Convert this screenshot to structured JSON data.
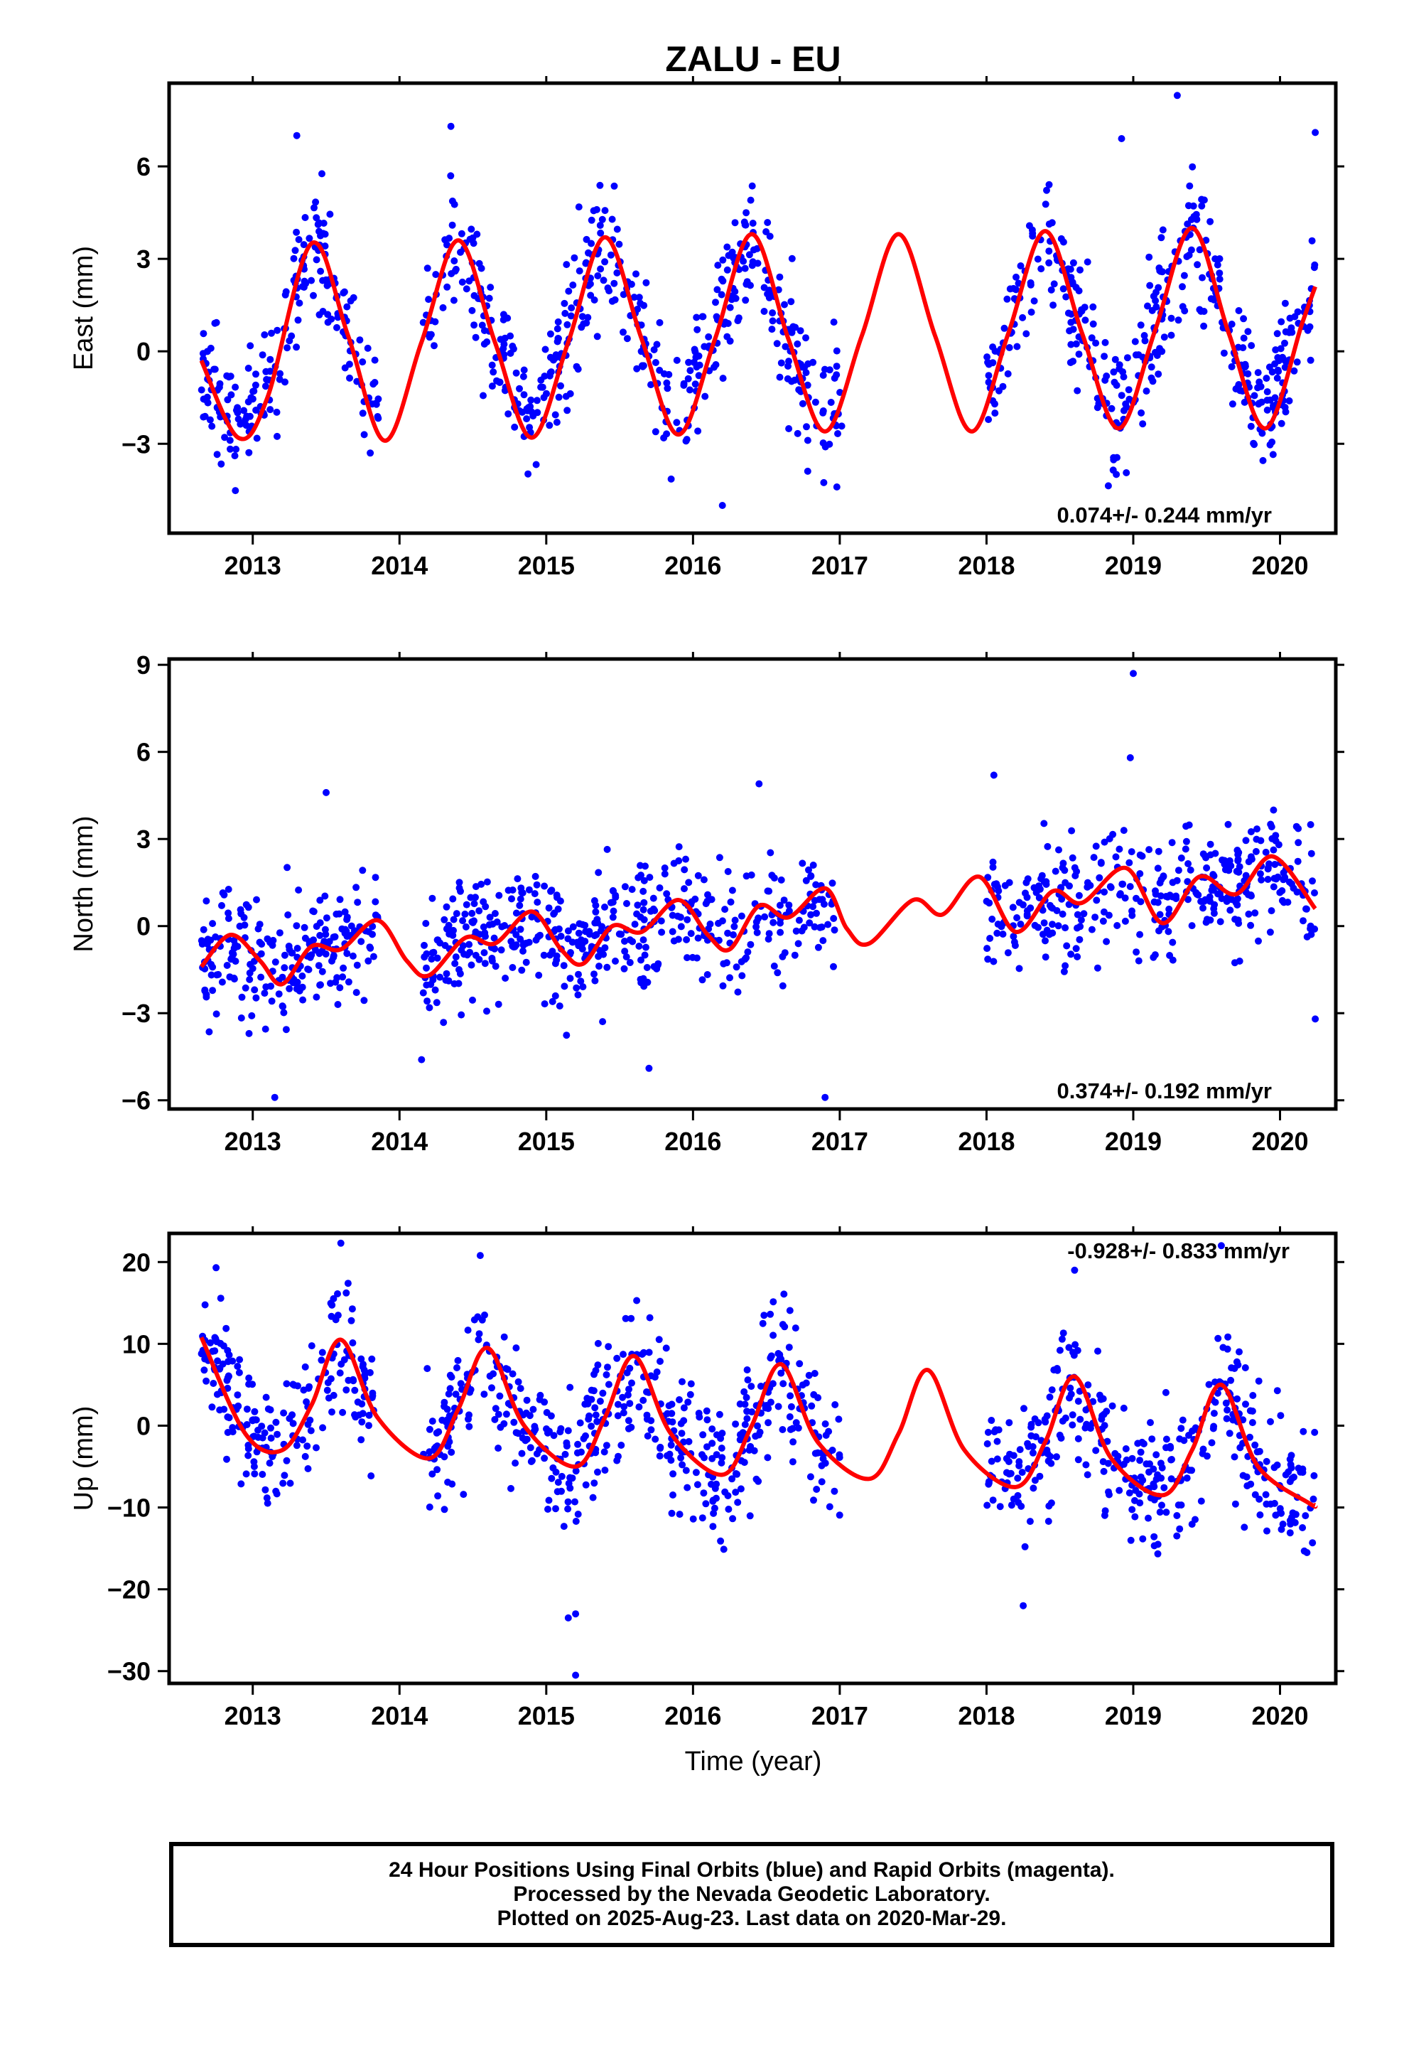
{
  "figure": {
    "title": "ZALU - EU",
    "xlabel": "Time (year)"
  },
  "caption": {
    "line1": "24 Hour Positions Using Final Orbits (blue) and Rapid Orbits (magenta).",
    "line2": "Processed by the Nevada Geodetic Laboratory.",
    "line3": "Plotted on 2025-Aug-23. Last data on 2020-Mar-29."
  },
  "colors": {
    "points": "#0000ff",
    "model": "#ff0000",
    "frame": "#000000"
  },
  "chart_data": [
    {
      "type": "scatter",
      "component": "East",
      "ylabel": "East (mm)",
      "rate_text": "0.074+/- 0.244 mm/yr",
      "xlim": [
        2012.43,
        2020.38
      ],
      "ylim": [
        -5.9,
        8.7
      ],
      "xticks": [
        2013,
        2014,
        2015,
        2016,
        2017,
        2018,
        2019,
        2020
      ],
      "yticks": [
        -3,
        0,
        3,
        6
      ],
      "data_start": 2012.65,
      "data_end": 2020.24,
      "gaps": [
        [
          2013.86,
          2014.16
        ],
        [
          2017.02,
          2018.0
        ]
      ],
      "model": {
        "x": [
          2012.65,
          2012.9,
          2013.1,
          2013.4,
          2013.65,
          2013.9,
          2014.15,
          2014.4,
          2014.65,
          2014.9,
          2015.15,
          2015.4,
          2015.65,
          2015.9,
          2016.15,
          2016.4,
          2016.65,
          2016.9,
          2017.15,
          2017.4,
          2017.65,
          2017.9,
          2018.15,
          2018.4,
          2018.65,
          2018.9,
          2019.15,
          2019.4,
          2019.65,
          2019.9,
          2020.15,
          2020.24
        ],
        "y": [
          -0.3,
          -2.8,
          -1.5,
          3.5,
          0.5,
          -2.9,
          0.3,
          3.6,
          0.3,
          -2.8,
          0.3,
          3.7,
          0.4,
          -2.7,
          0.4,
          3.8,
          0.4,
          -2.6,
          0.5,
          3.8,
          0.5,
          -2.6,
          0.6,
          3.9,
          0.6,
          -2.5,
          0.7,
          4.0,
          0.6,
          -2.5,
          0.9,
          2.1
        ]
      },
      "points": {
        "amplitude": 3.2,
        "phase_peak": 2013.4,
        "noise": 1.0,
        "offset": 0.4,
        "outliers": [
          [
            2019.3,
            8.3
          ],
          [
            2018.92,
            6.9
          ],
          [
            2020.24,
            7.1
          ],
          [
            2013.3,
            7.0
          ],
          [
            2014.35,
            7.3
          ],
          [
            2016.98,
            -4.4
          ],
          [
            2016.2,
            -5.0
          ]
        ]
      }
    },
    {
      "type": "scatter",
      "component": "North",
      "ylabel": "North (mm)",
      "rate_text": "0.374+/- 0.192 mm/yr",
      "xlim": [
        2012.43,
        2020.38
      ],
      "ylim": [
        -6.3,
        9.2
      ],
      "xticks": [
        2013,
        2014,
        2015,
        2016,
        2017,
        2018,
        2019,
        2020
      ],
      "yticks": [
        -6,
        -3,
        0,
        3,
        6,
        9
      ],
      "data_start": 2012.65,
      "data_end": 2020.24,
      "gaps": [
        [
          2013.86,
          2014.16
        ],
        [
          2016.98,
          2018.0
        ]
      ],
      "model": {
        "x": [
          2012.65,
          2012.85,
          2013.05,
          2013.2,
          2013.4,
          2013.6,
          2013.85,
          2014.05,
          2014.2,
          2014.45,
          2014.65,
          2014.9,
          2015.1,
          2015.25,
          2015.45,
          2015.65,
          2015.9,
          2016.1,
          2016.25,
          2016.45,
          2016.65,
          2016.9,
          2017.05,
          2017.2,
          2017.5,
          2017.7,
          2017.95,
          2018.2,
          2018.45,
          2018.65,
          2018.95,
          2019.2,
          2019.45,
          2019.7,
          2019.95,
          2020.24
        ],
        "y": [
          -1.4,
          -0.3,
          -1.2,
          -2.0,
          -0.7,
          -0.8,
          0.2,
          -1.2,
          -1.7,
          -0.4,
          -0.6,
          0.5,
          -0.8,
          -1.3,
          0.0,
          -0.2,
          0.9,
          -0.3,
          -0.8,
          0.7,
          0.3,
          1.3,
          -0.1,
          -0.6,
          0.9,
          0.4,
          1.7,
          -0.2,
          1.2,
          0.8,
          2.0,
          0.1,
          1.7,
          1.1,
          2.4,
          0.6
        ]
      },
      "points": {
        "trend_start": -1.0,
        "trend_end": 1.6,
        "noise": 1.0,
        "outliers": [
          [
            2019.0,
            8.7
          ],
          [
            2018.98,
            5.8
          ],
          [
            2013.5,
            4.6
          ],
          [
            2016.45,
            4.9
          ],
          [
            2020.24,
            -3.2
          ],
          [
            2016.9,
            -5.9
          ],
          [
            2013.15,
            -5.9
          ],
          [
            2015.7,
            -4.9
          ],
          [
            2014.15,
            -4.6
          ],
          [
            2018.05,
            5.2
          ]
        ]
      }
    },
    {
      "type": "scatter",
      "component": "Up",
      "ylabel": "Up (mm)",
      "rate_text": "-0.928+/- 0.833 mm/yr",
      "xlim": [
        2012.43,
        2020.38
      ],
      "ylim": [
        -31.5,
        23.5
      ],
      "xticks": [
        2013,
        2014,
        2015,
        2016,
        2017,
        2018,
        2019,
        2020
      ],
      "yticks": [
        -30,
        -20,
        -10,
        0,
        10,
        20
      ],
      "data_start": 2012.65,
      "data_end": 2020.24,
      "gaps": [
        [
          2013.86,
          2014.16
        ],
        [
          2017.0,
          2018.0
        ]
      ],
      "model": {
        "x": [
          2012.65,
          2012.95,
          2013.2,
          2013.4,
          2013.6,
          2013.85,
          2014.2,
          2014.4,
          2014.6,
          2014.85,
          2015.2,
          2015.4,
          2015.6,
          2015.85,
          2016.2,
          2016.4,
          2016.6,
          2016.85,
          2017.2,
          2017.4,
          2017.6,
          2017.85,
          2018.2,
          2018.4,
          2018.6,
          2018.85,
          2019.2,
          2019.4,
          2019.6,
          2019.85,
          2020.2,
          2020.24
        ],
        "y": [
          10.8,
          -1.0,
          -3.0,
          2.5,
          10.5,
          1.0,
          -4.0,
          2.0,
          9.5,
          0.0,
          -5.0,
          1.0,
          8.5,
          -1.0,
          -6.0,
          0.0,
          7.5,
          -2.0,
          -6.5,
          -1.0,
          6.8,
          -3.0,
          -7.5,
          -2.0,
          6.0,
          -4.0,
          -8.5,
          -3.0,
          5.0,
          -5.0,
          -9.5,
          -9.7
        ]
      },
      "points": {
        "amplitude": 8.0,
        "phase_peak": 2013.6,
        "noise": 4.2,
        "outliers": [
          [
            2015.2,
            -30.5
          ],
          [
            2015.15,
            -23.5
          ],
          [
            2015.2,
            -23.0
          ],
          [
            2013.6,
            22.3
          ],
          [
            2014.55,
            20.8
          ],
          [
            2019.6,
            22.0
          ],
          [
            2018.6,
            19.0
          ],
          [
            2012.75,
            19.3
          ],
          [
            2018.25,
            -22.0
          ]
        ]
      }
    }
  ]
}
